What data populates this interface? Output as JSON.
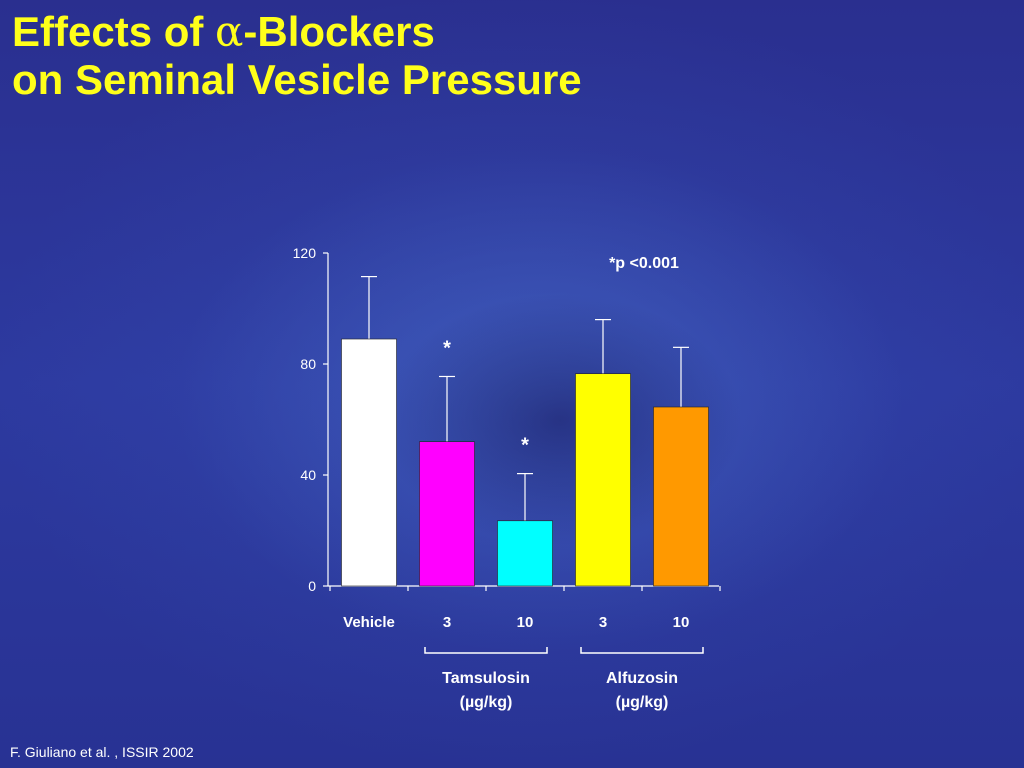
{
  "slide": {
    "title_line1_prefix": "Effects of ",
    "title_line1_symbol": "α",
    "title_line1_suffix": "-Blockers",
    "title_line2": "on Seminal Vesicle Pressure",
    "citation": "F. Giuliano et al. , ISSIR 2002"
  },
  "chart_data": {
    "type": "bar",
    "title": "",
    "xlabel": "",
    "ylabel": "",
    "ylim": [
      0,
      120
    ],
    "yticks": [
      0,
      40,
      80,
      120
    ],
    "grid": false,
    "legend": "none",
    "annotation": "*p <0.001",
    "categories": [
      "Vehicle",
      "3",
      "10",
      "3",
      "10"
    ],
    "values": [
      89,
      52,
      23.5,
      76.5,
      64.5
    ],
    "error_upper": [
      111.5,
      75.5,
      40.5,
      96,
      86
    ],
    "significance": [
      "",
      "*",
      "*",
      "",
      ""
    ],
    "colors": [
      "#ffffff",
      "#ff00ff",
      "#00ffff",
      "#ffff00",
      "#ff9900"
    ],
    "groups": [
      {
        "label": "Tamsulosin",
        "unit": "(µg/kg)",
        "categories": [
          1,
          2
        ]
      },
      {
        "label": "Alfuzosin",
        "unit": "(µg/kg)",
        "categories": [
          3,
          4
        ]
      }
    ]
  }
}
